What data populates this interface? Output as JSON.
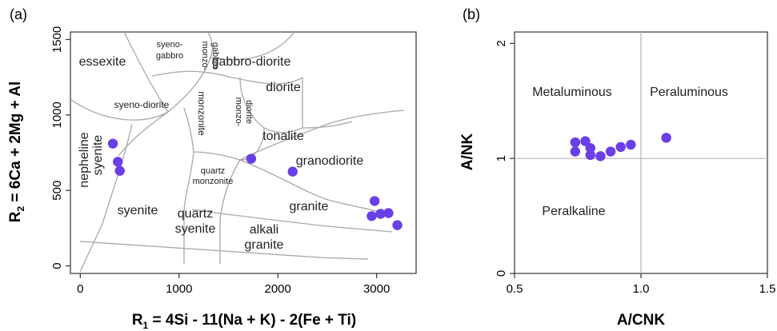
{
  "chart_data": [
    {
      "type": "scatter",
      "panel_label": "(a)",
      "xlabel": "R1 = 4Si - 11(Na + K) - 2(Fe + Ti)",
      "ylabel": "R2 = 6Ca + 2Mg + Al",
      "xlabel_parts": {
        "r": "R",
        "sub": "1",
        "rest": " = 4Si - 11(Na + K) - 2(Fe + Ti)"
      },
      "ylabel_parts": {
        "r": "R",
        "sub": "2",
        "rest": " = 6Ca + 2Mg + Al"
      },
      "xlim": [
        -100,
        3400
      ],
      "ylim": [
        -50,
        1550
      ],
      "x_ticks": [
        0,
        1000,
        2000,
        3000
      ],
      "y_ticks": [
        0,
        500,
        1000,
        1500
      ],
      "x_tick_labels": [
        "0",
        "1000",
        "2000",
        "3000"
      ],
      "y_tick_labels": [
        "0",
        "500",
        "1000",
        "1500"
      ],
      "grid": false,
      "point_color": "#6a3fe8",
      "field_labels": [
        "essexite",
        "syeno-",
        "gabbro",
        "monzo-",
        "gabbro",
        "gabbro-diorite",
        "diorite",
        "syeno-diorite",
        "monzonite",
        "monzo-",
        "diorite",
        "nepheline",
        "syenite",
        "tonalite",
        "quartz",
        "monzonite",
        "granodiorite",
        "syenite",
        "granite",
        "quartz",
        "syenite",
        "alkali",
        "granite"
      ],
      "points": [
        {
          "x": 330,
          "y": 810
        },
        {
          "x": 380,
          "y": 690
        },
        {
          "x": 400,
          "y": 630
        },
        {
          "x": 1730,
          "y": 710
        },
        {
          "x": 2150,
          "y": 625
        },
        {
          "x": 2980,
          "y": 430
        },
        {
          "x": 2950,
          "y": 330
        },
        {
          "x": 3040,
          "y": 345
        },
        {
          "x": 3120,
          "y": 350
        },
        {
          "x": 3210,
          "y": 270
        }
      ]
    },
    {
      "type": "scatter",
      "panel_label": "(b)",
      "xlabel": "A/CNK",
      "ylabel": "A/NK",
      "xlim": [
        0.5,
        1.5
      ],
      "ylim": [
        0,
        2.1
      ],
      "x_ticks": [
        0.5,
        1.0,
        1.5
      ],
      "y_ticks": [
        0,
        1,
        2
      ],
      "x_tick_labels": [
        "0.5",
        "1.0",
        "1.5"
      ],
      "y_tick_labels": [
        "0",
        "1",
        "2"
      ],
      "reference_lines": {
        "x": 1.0,
        "y": 1.0
      },
      "grid": false,
      "point_color": "#6a3fe8",
      "region_labels": [
        "Metaluminous",
        "Peraluminous",
        "Peralkaline"
      ],
      "points": [
        {
          "x": 0.74,
          "y": 1.14
        },
        {
          "x": 0.74,
          "y": 1.06
        },
        {
          "x": 0.78,
          "y": 1.15
        },
        {
          "x": 0.8,
          "y": 1.09
        },
        {
          "x": 0.8,
          "y": 1.03
        },
        {
          "x": 0.84,
          "y": 1.02
        },
        {
          "x": 0.88,
          "y": 1.06
        },
        {
          "x": 0.92,
          "y": 1.1
        },
        {
          "x": 0.96,
          "y": 1.12
        },
        {
          "x": 1.1,
          "y": 1.18
        }
      ]
    }
  ]
}
